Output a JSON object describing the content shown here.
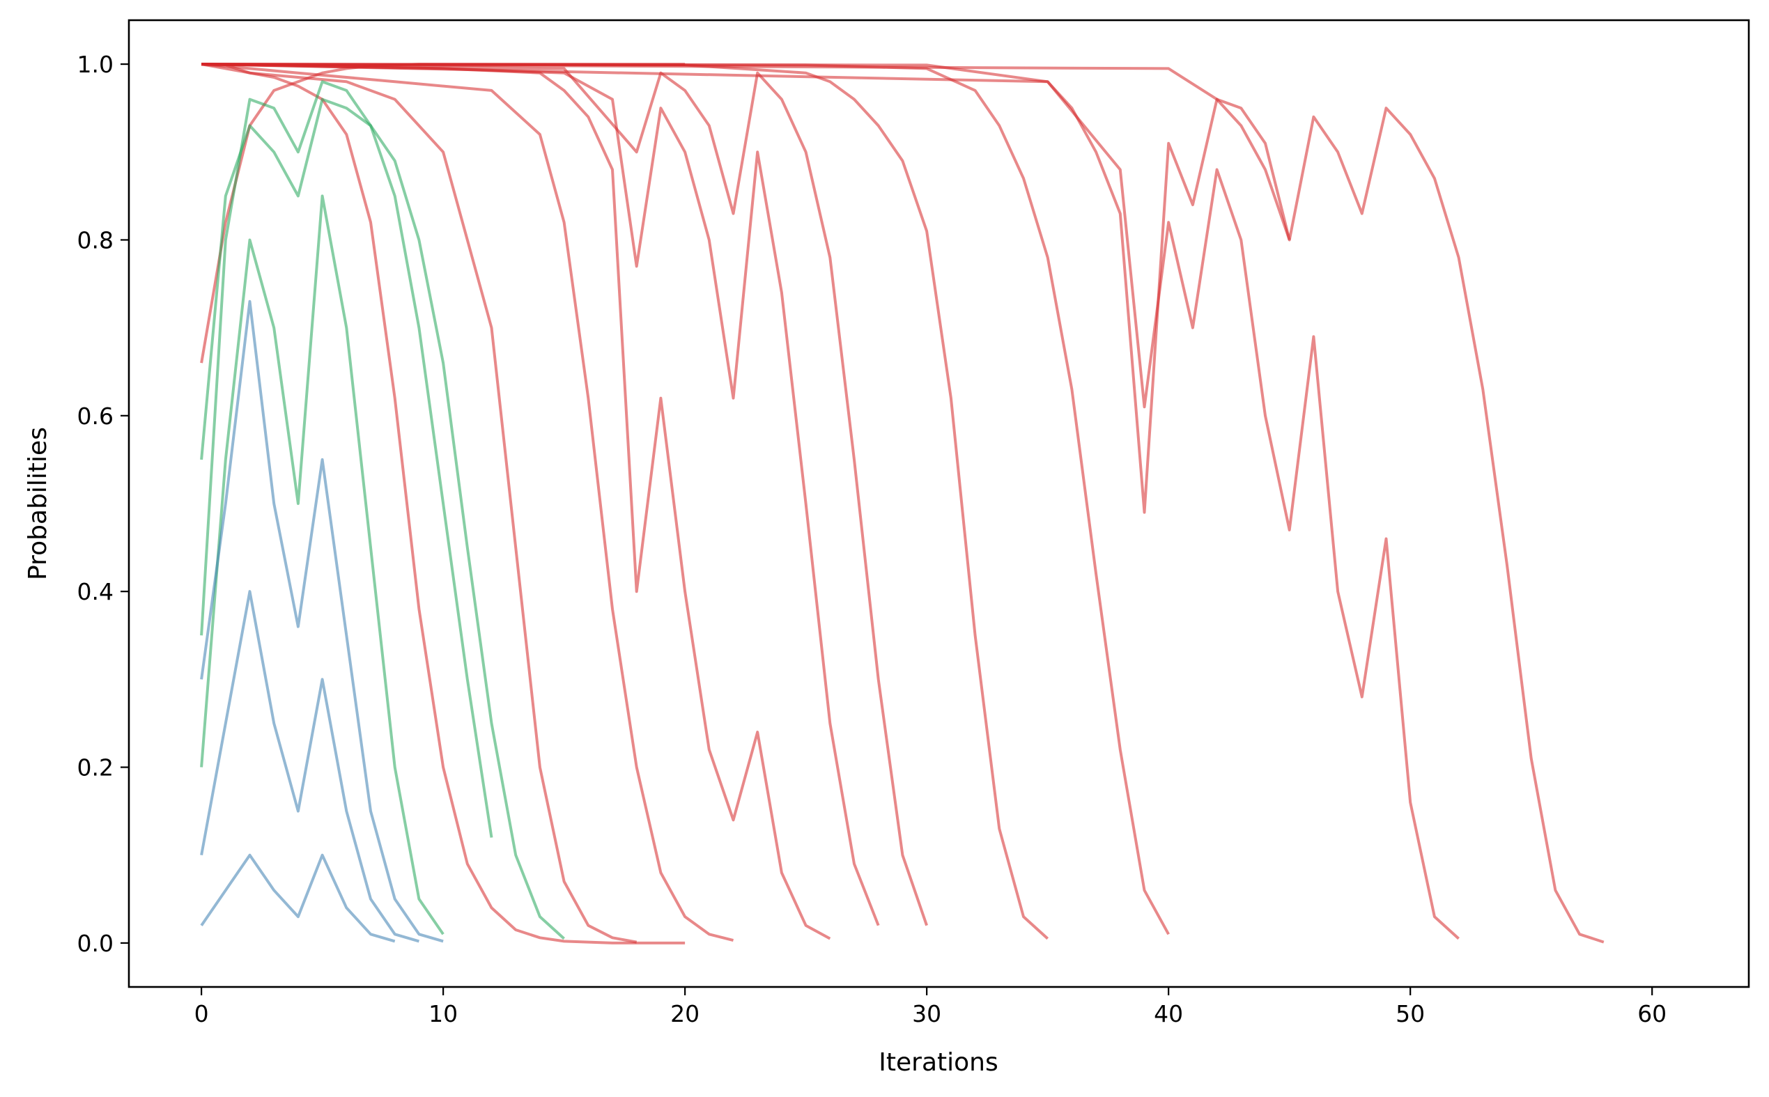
{
  "chart_data": {
    "type": "line",
    "title": "",
    "xlabel": "Iterations",
    "ylabel": "Probabilities",
    "xlim": [
      -3,
      64
    ],
    "ylim": [
      -0.05,
      1.05
    ],
    "x_ticks": [
      0,
      10,
      20,
      30,
      40,
      50,
      60
    ],
    "y_ticks": [
      0.0,
      0.2,
      0.4,
      0.6,
      0.8,
      1.0
    ],
    "x_tick_labels": [
      "0",
      "10",
      "20",
      "30",
      "40",
      "50",
      "60"
    ],
    "y_tick_labels": [
      "0.0",
      "0.2",
      "0.4",
      "0.6",
      "0.8",
      "1.0"
    ],
    "grid": false,
    "legend": "none",
    "colors": {
      "red": "#d62728",
      "green": "#22a55a",
      "blue": "#3a7db0",
      "brown": "#6b5a4e"
    },
    "series": [
      {
        "color": "red",
        "x": [
          0,
          1,
          2,
          3,
          4,
          5,
          6,
          7,
          8,
          9,
          10,
          11,
          12,
          13,
          14,
          15,
          16,
          17,
          18,
          19,
          20
        ],
        "values": [
          0.66,
          0.82,
          0.93,
          0.97,
          0.98,
          0.99,
          0.995,
          0.998,
          0.999,
          1,
          1,
          1,
          1,
          1,
          1,
          1,
          1,
          1,
          1,
          1,
          1
        ]
      },
      {
        "color": "red",
        "x": [
          0,
          1,
          2,
          3,
          4,
          5,
          6,
          7,
          8,
          9,
          10,
          11,
          12,
          13,
          14,
          15,
          16,
          17,
          18,
          19,
          20
        ],
        "values": [
          1.0,
          0.999,
          0.99,
          0.985,
          0.975,
          0.96,
          0.92,
          0.82,
          0.62,
          0.38,
          0.2,
          0.09,
          0.04,
          0.015,
          0.006,
          0.002,
          0.001,
          0,
          0,
          0,
          0
        ]
      },
      {
        "color": "red",
        "x": [
          0,
          2,
          4,
          6,
          8,
          10,
          12,
          13,
          14,
          15,
          16,
          17,
          18
        ],
        "values": [
          1.0,
          0.99,
          0.985,
          0.98,
          0.96,
          0.9,
          0.7,
          0.45,
          0.2,
          0.07,
          0.02,
          0.006,
          0.001
        ]
      },
      {
        "color": "red",
        "x": [
          0,
          4,
          8,
          12,
          14,
          15,
          16,
          17,
          18,
          19,
          20,
          21,
          22
        ],
        "values": [
          1.0,
          0.99,
          0.98,
          0.97,
          0.92,
          0.82,
          0.62,
          0.38,
          0.2,
          0.08,
          0.03,
          0.01,
          0.003
        ]
      },
      {
        "color": "red",
        "x": [
          0,
          10,
          14,
          15,
          16,
          17,
          18,
          19,
          20,
          21,
          22,
          23,
          24,
          25,
          26
        ],
        "values": [
          1.0,
          0.995,
          0.99,
          0.97,
          0.94,
          0.88,
          0.4,
          0.62,
          0.4,
          0.22,
          0.14,
          0.24,
          0.08,
          0.02,
          0.005
        ]
      },
      {
        "color": "red",
        "x": [
          0,
          10,
          15,
          17,
          18,
          19,
          20,
          21,
          22,
          23,
          24,
          25,
          26,
          27,
          28
        ],
        "values": [
          1.0,
          0.995,
          0.99,
          0.96,
          0.77,
          0.95,
          0.9,
          0.8,
          0.62,
          0.9,
          0.74,
          0.5,
          0.25,
          0.09,
          0.02
        ]
      },
      {
        "color": "red",
        "x": [
          0,
          15,
          18,
          19,
          20,
          21,
          22,
          23,
          24,
          25,
          26,
          27,
          28,
          29,
          30
        ],
        "values": [
          1.0,
          0.995,
          0.9,
          0.99,
          0.97,
          0.93,
          0.83,
          0.99,
          0.96,
          0.9,
          0.78,
          0.55,
          0.3,
          0.1,
          0.02
        ]
      },
      {
        "color": "red",
        "x": [
          0,
          20,
          25,
          26,
          27,
          28,
          29,
          30,
          31,
          32,
          33,
          34,
          35
        ],
        "values": [
          1.0,
          0.999,
          0.99,
          0.98,
          0.96,
          0.93,
          0.89,
          0.81,
          0.62,
          0.35,
          0.13,
          0.03,
          0.005
        ]
      },
      {
        "color": "red",
        "x": [
          0,
          25,
          30,
          32,
          33,
          34,
          35,
          36,
          37,
          38,
          39,
          40
        ],
        "values": [
          1.0,
          0.999,
          0.995,
          0.97,
          0.93,
          0.87,
          0.78,
          0.63,
          0.42,
          0.22,
          0.06,
          0.01
        ]
      },
      {
        "color": "red",
        "x": [
          0,
          30,
          35,
          36,
          37,
          38,
          39,
          40,
          41,
          42,
          43,
          44,
          45
        ],
        "values": [
          1.0,
          0.999,
          0.98,
          0.95,
          0.9,
          0.83,
          0.49,
          0.91,
          0.84,
          0.96,
          0.95,
          0.91,
          0.8
        ]
      },
      {
        "color": "red",
        "x": [
          0,
          35,
          38,
          39,
          40,
          41,
          42,
          43,
          44,
          45,
          46,
          47,
          48,
          49,
          50,
          51,
          52
        ],
        "values": [
          1.0,
          0.98,
          0.88,
          0.61,
          0.82,
          0.7,
          0.88,
          0.8,
          0.6,
          0.47,
          0.69,
          0.4,
          0.28,
          0.46,
          0.16,
          0.03,
          0.005
        ]
      },
      {
        "color": "red",
        "x": [
          0,
          40,
          42,
          43,
          44,
          45,
          46,
          47,
          48,
          49,
          50,
          51,
          52,
          53,
          54,
          55,
          56,
          57,
          58
        ],
        "values": [
          1.0,
          0.995,
          0.96,
          0.93,
          0.88,
          0.8,
          0.94,
          0.9,
          0.83,
          0.95,
          0.92,
          0.87,
          0.78,
          0.63,
          0.43,
          0.21,
          0.06,
          0.01,
          0.001
        ]
      },
      {
        "color": "green",
        "x": [
          0,
          1,
          2,
          3,
          4,
          5,
          6,
          7,
          8,
          9,
          10,
          11,
          12
        ],
        "values": [
          0.35,
          0.8,
          0.96,
          0.95,
          0.9,
          0.98,
          0.97,
          0.93,
          0.85,
          0.7,
          0.5,
          0.3,
          0.12
        ]
      },
      {
        "color": "green",
        "x": [
          0,
          1,
          2,
          3,
          4,
          5,
          6,
          7,
          8,
          9,
          10,
          11,
          12,
          13,
          14,
          15
        ],
        "values": [
          0.55,
          0.85,
          0.93,
          0.9,
          0.85,
          0.96,
          0.95,
          0.93,
          0.89,
          0.8,
          0.66,
          0.45,
          0.25,
          0.1,
          0.03,
          0.005
        ]
      },
      {
        "color": "green",
        "x": [
          0,
          1,
          2,
          3,
          4,
          5,
          6,
          7,
          8,
          9,
          10
        ],
        "values": [
          0.2,
          0.55,
          0.8,
          0.7,
          0.5,
          0.85,
          0.7,
          0.45,
          0.2,
          0.05,
          0.01
        ]
      },
      {
        "color": "blue",
        "x": [
          0,
          1,
          2,
          3,
          4,
          5,
          6,
          7,
          8,
          9,
          10
        ],
        "values": [
          0.3,
          0.5,
          0.73,
          0.5,
          0.36,
          0.55,
          0.35,
          0.15,
          0.05,
          0.01,
          0.002
        ]
      },
      {
        "color": "blue",
        "x": [
          0,
          1,
          2,
          3,
          4,
          5,
          6,
          7,
          8,
          9
        ],
        "values": [
          0.1,
          0.25,
          0.4,
          0.25,
          0.15,
          0.3,
          0.15,
          0.05,
          0.01,
          0.002
        ]
      },
      {
        "color": "blue",
        "x": [
          0,
          1,
          2,
          3,
          4,
          5,
          6,
          7,
          8
        ],
        "values": [
          0.02,
          0.06,
          0.1,
          0.06,
          0.03,
          0.1,
          0.04,
          0.01,
          0.002
        ]
      }
    ]
  }
}
